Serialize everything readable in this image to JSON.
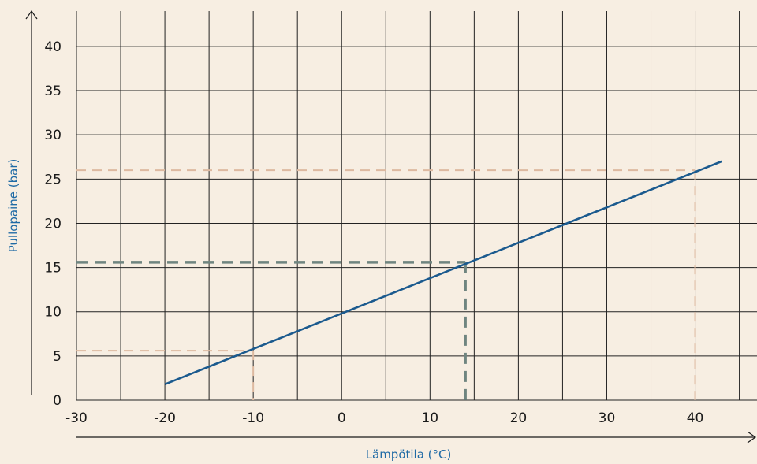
{
  "chart_data": {
    "type": "line",
    "title": "",
    "xlabel": "Lämpötila (°C)",
    "ylabel": "Pullopaine (bar)",
    "xlim": [
      -30,
      47
    ],
    "ylim": [
      0,
      44
    ],
    "x_ticks": [
      -30,
      -20,
      -10,
      0,
      10,
      20,
      30,
      40
    ],
    "y_ticks": [
      0,
      5,
      10,
      15,
      20,
      25,
      30,
      35,
      40
    ],
    "grid_x_step": 5,
    "grid_y_step": 5,
    "grid": true,
    "series": [
      {
        "x": [
          -20,
          43
        ],
        "y": [
          1.8,
          27.0
        ]
      }
    ],
    "reference_lines": [
      {
        "style": "light-dashed",
        "x": -10,
        "y": 5.6
      },
      {
        "style": "bold-dashed",
        "x": 14,
        "y": 15.6
      },
      {
        "style": "light-dashed",
        "x": 40,
        "y": 26
      }
    ],
    "colors": {
      "background": "#f7eee2",
      "grid": "#222222",
      "line": "#1b5a8e",
      "light_dashed": "#ddb9a0",
      "bold_dashed": "#6f8580",
      "axis_title": "#1f6aa5"
    }
  }
}
